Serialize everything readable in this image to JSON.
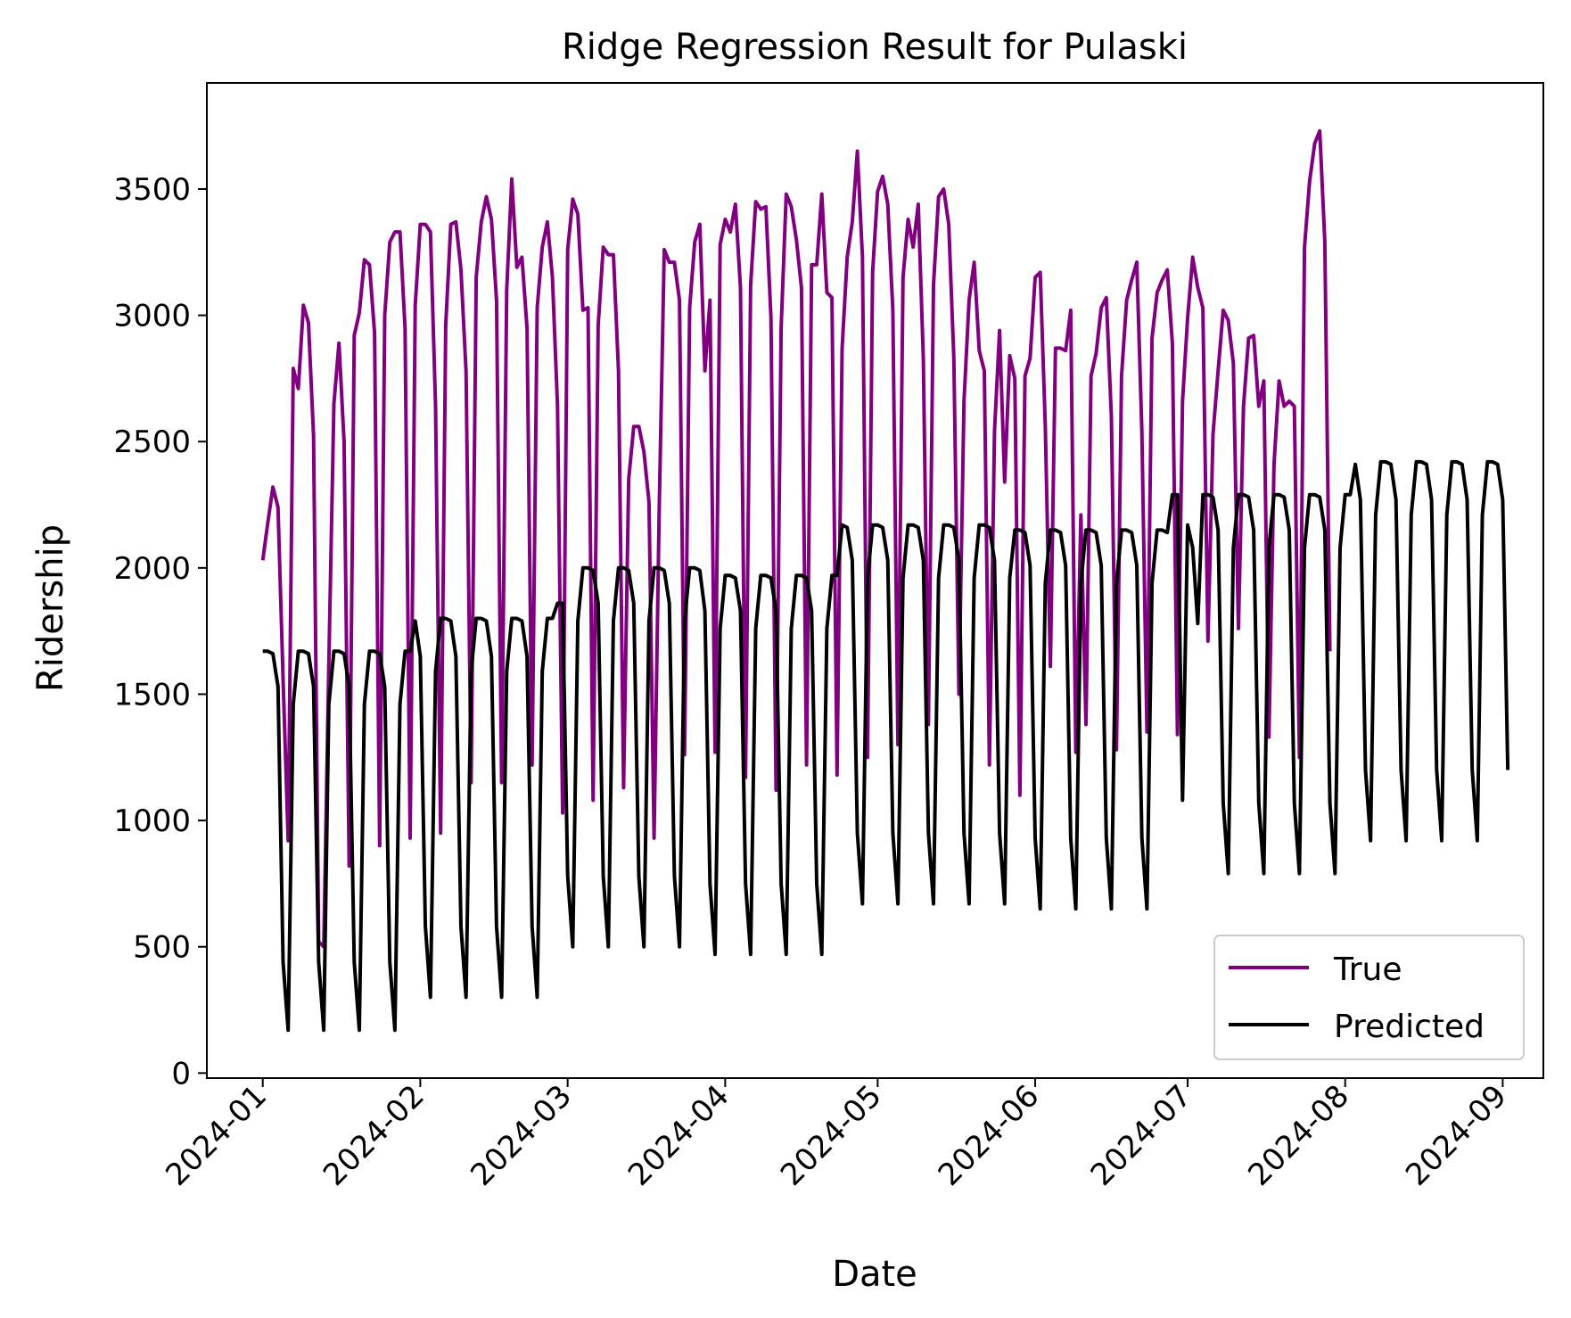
{
  "chart_data": {
    "type": "line",
    "title": "Ridge Regression Result for Pulaski",
    "xlabel": "Date",
    "ylabel": "Ridership",
    "x_range": [
      "2023-12-21",
      "2024-09-09"
    ],
    "ylim": [
      -20,
      3920
    ],
    "x_ticks": [
      "2024-01",
      "2024-02",
      "2024-03",
      "2024-04",
      "2024-05",
      "2024-06",
      "2024-07",
      "2024-08",
      "2024-09"
    ],
    "y_ticks": [
      0,
      500,
      1000,
      1500,
      2000,
      2500,
      3000,
      3500
    ],
    "grid": false,
    "legend": {
      "placement": "lower-right",
      "entries": [
        "True",
        "Predicted"
      ]
    },
    "series": [
      {
        "name": "True",
        "color": "#800080",
        "start": "2024-01-01",
        "values": [
          2030,
          2180,
          2320,
          2240,
          1560,
          920,
          2790,
          2710,
          3040,
          2970,
          2520,
          520,
          500,
          1620,
          2650,
          2890,
          2500,
          820,
          2920,
          3010,
          3220,
          3200,
          2930,
          900,
          3000,
          3290,
          3330,
          3330,
          2950,
          930,
          3040,
          3360,
          3360,
          3330,
          2640,
          950,
          2960,
          3360,
          3370,
          3180,
          2780,
          1150,
          3150,
          3370,
          3470,
          3380,
          3060,
          1150,
          3100,
          3540,
          3190,
          3230,
          2950,
          1220,
          3030,
          3270,
          3370,
          3150,
          2640,
          1030,
          3260,
          3460,
          3400,
          3020,
          3030,
          1080,
          2960,
          3270,
          3240,
          3240,
          2780,
          1130,
          2350,
          2560,
          2560,
          2460,
          2260,
          930,
          2220,
          3260,
          3210,
          3210,
          3060,
          1260,
          3030,
          3290,
          3360,
          2780,
          3060,
          1270,
          3280,
          3380,
          3330,
          3440,
          3110,
          1170,
          3120,
          3450,
          3420,
          3430,
          2990,
          1120,
          2950,
          3480,
          3430,
          3300,
          3110,
          1220,
          3200,
          3200,
          3480,
          3090,
          3070,
          1180,
          2870,
          3230,
          3370,
          3650,
          3230,
          1250,
          3170,
          3490,
          3550,
          3440,
          3020,
          1300,
          3150,
          3380,
          3270,
          3440,
          2830,
          1380,
          3120,
          3470,
          3500,
          3360,
          2830,
          1500,
          2660,
          3060,
          3210,
          2860,
          2780,
          1220,
          2540,
          2940,
          2340,
          2840,
          2750,
          1100,
          2760,
          2830,
          3150,
          3170,
          2560,
          1610,
          2870,
          2870,
          2860,
          3020,
          1270,
          2210,
          1380,
          2760,
          2850,
          3030,
          3070,
          2600,
          1280,
          2760,
          3060,
          3140,
          3210,
          2540,
          1350,
          2910,
          3090,
          3140,
          3180,
          2890,
          1340,
          2660,
          2990,
          3230,
          3110,
          3030,
          1710,
          2530,
          2780,
          3020,
          2980,
          2810,
          1760,
          2640,
          2910,
          2920,
          2640,
          2740,
          1330,
          2410,
          2740,
          2640,
          2660,
          2640,
          1250,
          3270,
          3530,
          3680,
          3730,
          3290,
          1670
        ]
      },
      {
        "name": "Predicted",
        "color": "#000000",
        "start": "2024-01-01",
        "values": [
          1670,
          1670,
          1660,
          1530,
          440,
          170,
          1460,
          1670,
          1670,
          1660,
          1530,
          440,
          170,
          1460,
          1670,
          1670,
          1660,
          1530,
          440,
          170,
          1460,
          1670,
          1670,
          1660,
          1530,
          440,
          170,
          1460,
          1670,
          1670,
          1790,
          1650,
          580,
          300,
          1590,
          1800,
          1800,
          1790,
          1650,
          580,
          300,
          1590,
          1800,
          1800,
          1790,
          1650,
          580,
          300,
          1590,
          1800,
          1800,
          1790,
          1650,
          580,
          300,
          1590,
          1800,
          1800,
          1860,
          1860,
          780,
          500,
          1790,
          2000,
          2000,
          1990,
          1860,
          780,
          500,
          1790,
          2000,
          2000,
          1990,
          1860,
          780,
          500,
          1790,
          2000,
          2000,
          1990,
          1860,
          780,
          500,
          1790,
          2000,
          2000,
          1990,
          1830,
          750,
          470,
          1760,
          1970,
          1970,
          1960,
          1830,
          750,
          470,
          1760,
          1970,
          1970,
          1960,
          1830,
          750,
          470,
          1760,
          1970,
          1970,
          1960,
          1830,
          750,
          470,
          1760,
          1970,
          1970,
          2170,
          2160,
          2030,
          950,
          670,
          1960,
          2170,
          2170,
          2160,
          2030,
          950,
          670,
          1960,
          2170,
          2170,
          2160,
          2030,
          950,
          670,
          1960,
          2170,
          2170,
          2160,
          2030,
          950,
          670,
          1960,
          2170,
          2170,
          2160,
          2030,
          950,
          670,
          1960,
          2150,
          2150,
          2140,
          2010,
          930,
          650,
          1940,
          2150,
          2150,
          2140,
          2010,
          930,
          650,
          1940,
          2150,
          2150,
          2140,
          2010,
          930,
          650,
          1940,
          2150,
          2150,
          2140,
          2010,
          930,
          650,
          1940,
          2150,
          2150,
          2140,
          2290,
          2290,
          1080,
          2170,
          2080,
          1780,
          2290,
          2290,
          2280,
          2150,
          1070,
          790,
          2080,
          2290,
          2290,
          2280,
          2150,
          1070,
          790,
          2080,
          2290,
          2290,
          2280,
          2150,
          1070,
          790,
          2080,
          2290,
          2290,
          2280,
          2150,
          1070,
          790,
          2080,
          2290,
          2290,
          2410,
          2270,
          1200,
          920,
          2210,
          2420,
          2420,
          2410,
          2270,
          1200,
          920,
          2210,
          2420,
          2420,
          2410,
          2270,
          1200,
          920,
          2210,
          2420,
          2420,
          2410,
          2270,
          1200,
          920,
          2210,
          2420,
          2420,
          2410,
          2270,
          1200
        ]
      }
    ]
  }
}
